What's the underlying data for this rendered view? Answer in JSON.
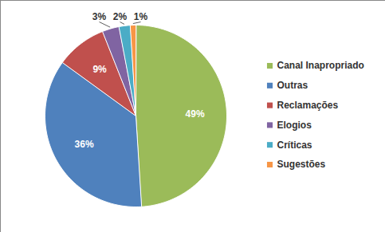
{
  "chart_data": {
    "type": "pie",
    "categories": [
      "Canal Inapropriado",
      "Outras",
      "Reclamações",
      "Elogios",
      "Críticas",
      "Sugestões"
    ],
    "values": [
      49,
      36,
      9,
      3,
      2,
      1
    ],
    "value_labels": [
      "49%",
      "36%",
      "9%",
      "3%",
      "2%",
      "1%"
    ],
    "colors": [
      "#9bbb59",
      "#4f81bd",
      "#c0504d",
      "#8064a2",
      "#4bacc6",
      "#f79646"
    ],
    "data_labels": true,
    "legend": "right"
  }
}
